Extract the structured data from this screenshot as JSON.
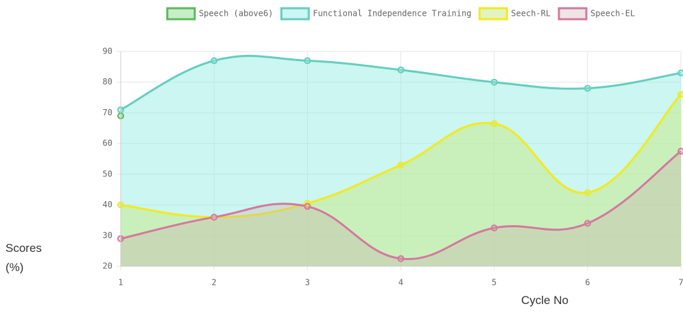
{
  "chart_data": {
    "type": "line",
    "x": [
      1,
      2,
      3,
      4,
      5,
      6,
      7
    ],
    "xlim": [
      1,
      7
    ],
    "xticks": [
      1,
      2,
      3,
      4,
      5,
      6,
      7
    ],
    "ylim": [
      20,
      90
    ],
    "yticks": [
      20,
      30,
      40,
      50,
      60,
      70,
      80,
      90
    ],
    "ylabel": "Scores (%)",
    "xlabel": "Cycle No",
    "grid": true,
    "fill": true,
    "legend": "top",
    "series": [
      {
        "name": "Speech (above6)",
        "color": "#5cb85c",
        "fill_color": "rgba(144,224,144,0.5)",
        "values": [
          69,
          null,
          null,
          null,
          null,
          null,
          null
        ]
      },
      {
        "name": "Functional Independence Training",
        "color": "#66cdbd",
        "fill_color": "rgba(140,235,225,0.45)",
        "values": [
          71,
          87,
          87,
          84,
          80,
          78,
          83
        ]
      },
      {
        "name": "Seech-RL",
        "color": "#f2ea1c",
        "fill_color": "rgba(200,235,140,0.55)",
        "values": [
          40,
          36,
          40.5,
          53,
          66.5,
          44,
          76
        ]
      },
      {
        "name": "Speech-EL",
        "color": "#d4789f",
        "fill_color": "rgba(200,170,170,0.3)",
        "values": [
          29,
          36,
          39.5,
          22.5,
          32.5,
          34,
          57.5
        ]
      }
    ]
  }
}
